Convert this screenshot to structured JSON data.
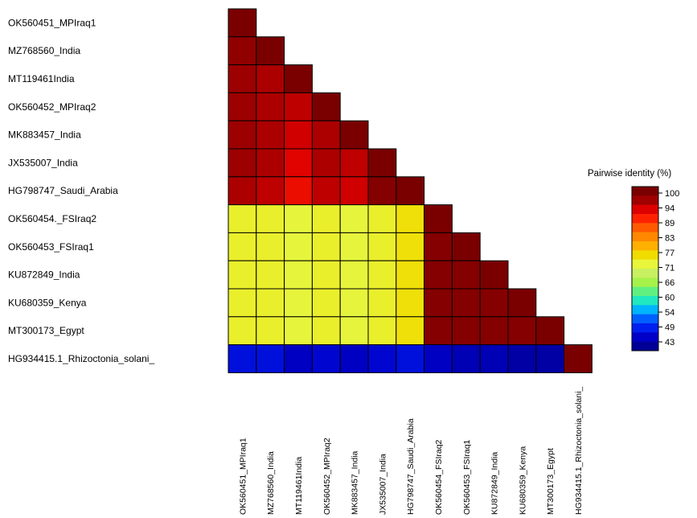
{
  "chart_data": {
    "type": "heatmap",
    "layout": "lower-triangle",
    "labels": [
      "OK560451_MPIraq1",
      "MZ768560_India",
      "MT119461India",
      "OK560452_MPIraq2",
      "MK883457_India",
      "JX535007_India",
      "HG798747_Saudi_Arabia",
      "OK560454._FSIraq2",
      "OK560453_FSIraq1",
      "KU872849_India",
      "KU680359_Kenya",
      "MT300173_Egypt",
      "HG934415.1_Rhizoctonia_solani_"
    ],
    "col_labels": [
      "OK560451_MPIraq1",
      "MZ768560_India",
      "MT119461India",
      "OK560452_MPIraq2",
      "MK883457_India",
      "JX535007_India",
      "HG798747_Saudi_Arabia",
      "OK560454_FSIraq2",
      "OK560453_FSIraq1",
      "KU872849_India",
      "KU680359_Kenya",
      "MT300173_Egypt",
      "HG934415.1_Rhizoctonia_solani_"
    ],
    "values": [
      [
        100
      ],
      [
        98,
        100
      ],
      [
        97,
        96,
        100
      ],
      [
        97,
        96,
        95,
        100
      ],
      [
        97,
        96,
        94,
        96,
        100
      ],
      [
        97,
        96,
        93,
        96,
        95,
        100
      ],
      [
        96,
        95,
        92,
        95,
        94,
        99,
        100
      ],
      [
        74,
        74,
        73,
        74,
        73,
        74,
        76,
        100
      ],
      [
        74,
        74,
        73,
        74,
        73,
        74,
        76,
        99,
        100
      ],
      [
        74,
        74,
        73,
        74,
        73,
        74,
        76,
        99,
        99,
        100
      ],
      [
        74,
        74,
        73,
        74,
        73,
        74,
        76,
        99,
        99,
        99,
        100
      ],
      [
        74,
        74,
        73,
        74,
        73,
        74,
        76,
        99,
        99,
        99,
        99,
        100
      ],
      [
        48,
        48,
        46,
        47,
        46,
        47,
        48,
        46,
        45,
        45,
        44,
        44,
        100
      ]
    ],
    "legend": {
      "title": "Pairwise identity (%)",
      "ticks": [
        "100",
        "94",
        "89",
        "83",
        "77",
        "71",
        "66",
        "60",
        "54",
        "49",
        "43"
      ],
      "colors": [
        "#7a0000",
        "#a00000",
        "#dd0000",
        "#ff2200",
        "#ff5a00",
        "#ff8800",
        "#ffb000",
        "#f0dc00",
        "#e8f53a",
        "#c8f060",
        "#a6f24a",
        "#60f080",
        "#20e8c0",
        "#00b4ff",
        "#0060ff",
        "#0020f0",
        "#0000c8",
        "#000096"
      ],
      "range": [
        43,
        100
      ]
    }
  }
}
